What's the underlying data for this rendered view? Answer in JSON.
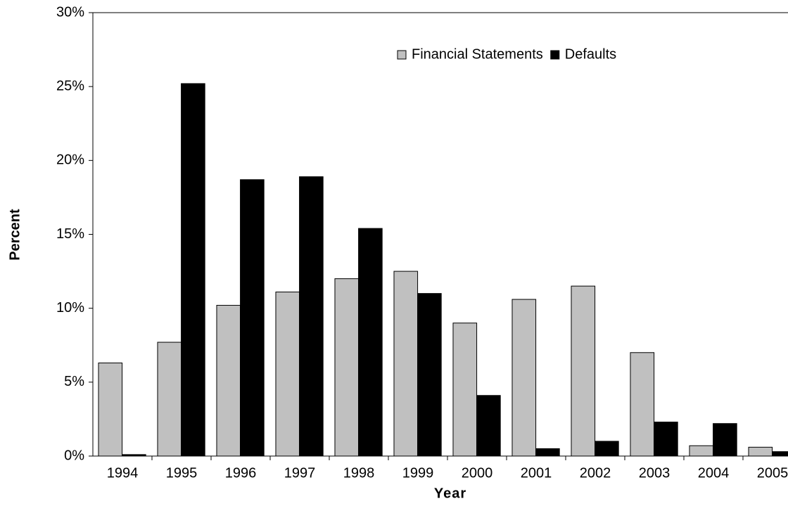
{
  "chart_data": {
    "type": "bar",
    "x_label": "Year",
    "y_label": "Percent",
    "categories": [
      "1994",
      "1995",
      "1996",
      "1997",
      "1998",
      "1999",
      "2000",
      "2001",
      "2002",
      "2003",
      "2004",
      "2005"
    ],
    "series": [
      {
        "name": "Financial Statements",
        "color": "#c0c0c0",
        "values": [
          6.3,
          7.7,
          10.2,
          11.1,
          12.0,
          12.5,
          9.0,
          10.6,
          11.5,
          7.0,
          0.7,
          0.6
        ]
      },
      {
        "name": "Defaults",
        "color": "#000000",
        "values": [
          0.1,
          25.2,
          18.7,
          18.9,
          15.4,
          11.0,
          4.1,
          0.5,
          1.0,
          2.3,
          2.2,
          0.3
        ]
      }
    ],
    "ylim": [
      0,
      30
    ],
    "yticks": [
      {
        "value": 0,
        "label": "0%"
      },
      {
        "value": 5,
        "label": "5%"
      },
      {
        "value": 10,
        "label": "10%"
      },
      {
        "value": 15,
        "label": "15%"
      },
      {
        "value": 20,
        "label": "20%"
      },
      {
        "value": 25,
        "label": "25%"
      },
      {
        "value": 30,
        "label": "30%"
      }
    ],
    "legend": "top-right"
  }
}
